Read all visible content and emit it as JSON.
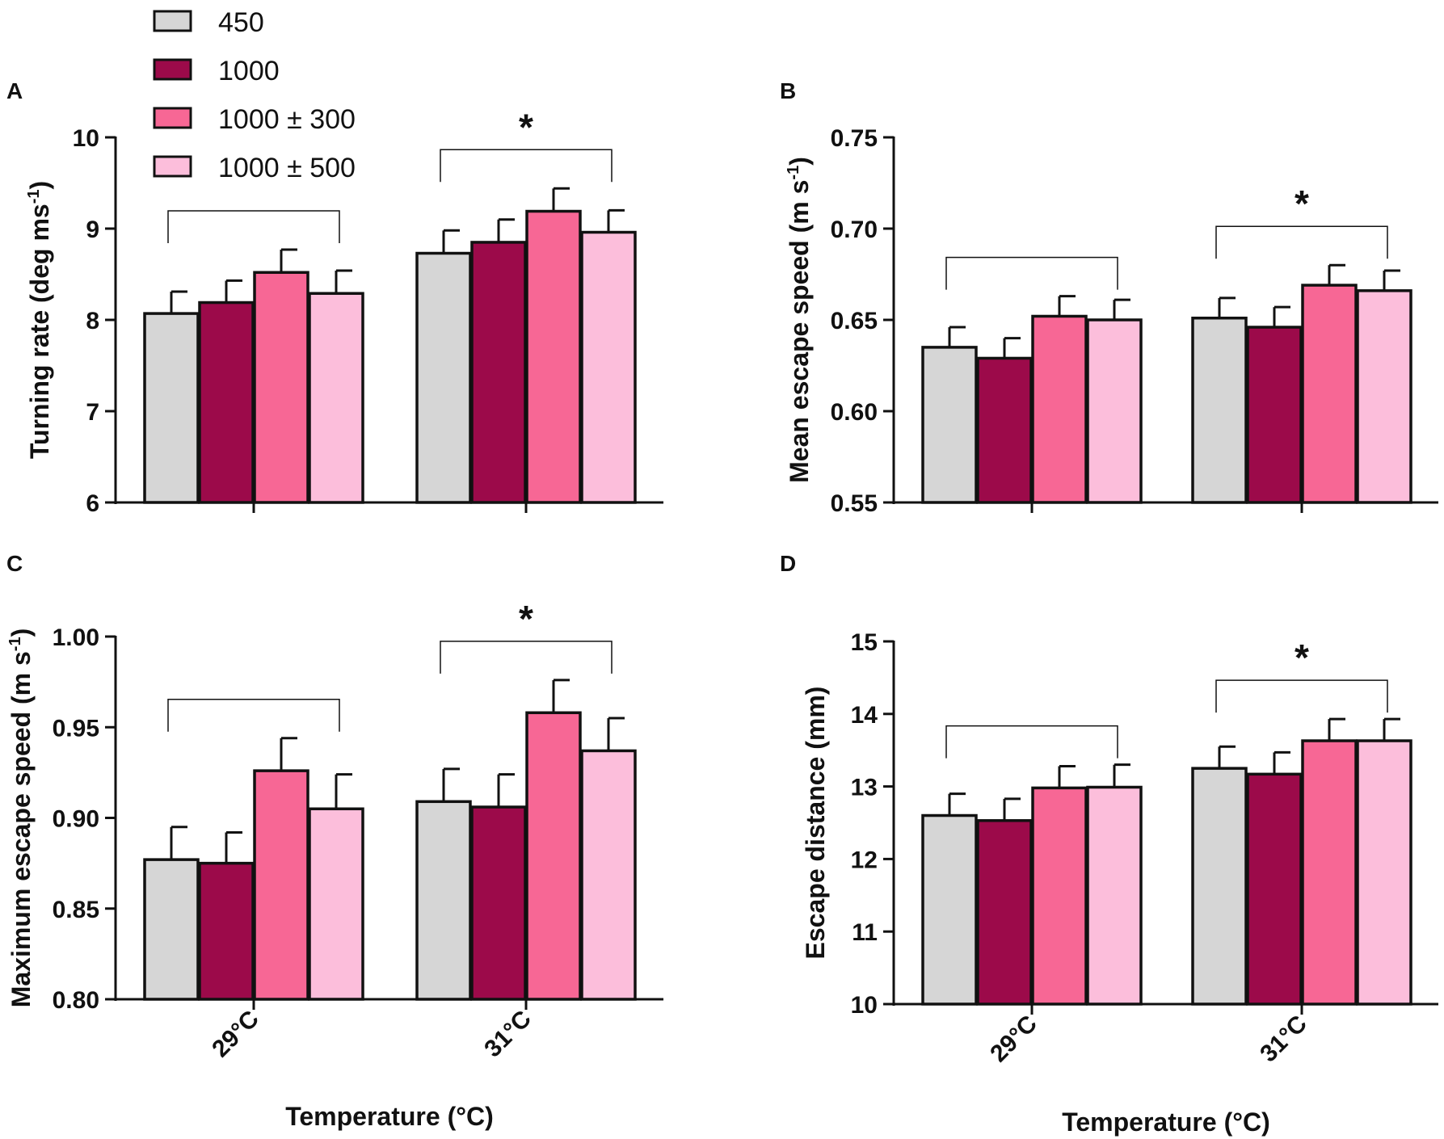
{
  "legend": {
    "items": [
      {
        "label": "450",
        "color": "#d6d6d6"
      },
      {
        "label": "1000",
        "color": "#9c0a4a"
      },
      {
        "label": "1000 ± 300",
        "color": "#f76795"
      },
      {
        "label": "1000 ± 500",
        "color": "#fcbedb"
      }
    ]
  },
  "significance_marker": "*",
  "chart_data": [
    {
      "type": "bar",
      "panel": "A",
      "categories": [
        "29°C",
        "31°C"
      ],
      "series": [
        {
          "name": "450",
          "values": [
            8.07,
            8.73
          ],
          "errors": [
            0.24,
            0.25
          ]
        },
        {
          "name": "1000",
          "values": [
            8.19,
            8.85
          ],
          "errors": [
            0.24,
            0.25
          ]
        },
        {
          "name": "1000 ± 300",
          "values": [
            8.52,
            9.19
          ],
          "errors": [
            0.25,
            0.25
          ]
        },
        {
          "name": "1000 ± 500",
          "values": [
            8.29,
            8.96
          ],
          "errors": [
            0.25,
            0.24
          ]
        }
      ],
      "ylabel_main": "Turning rate (deg ms",
      "ylabel_sup": "-1",
      "ylabel_end": ")",
      "xlabel": "",
      "ylim": [
        6,
        10
      ],
      "yticks": [
        6,
        7,
        8,
        9,
        10
      ],
      "ytick_labels": [
        "6",
        "7",
        "8",
        "9",
        "10"
      ],
      "significant": [
        false,
        true
      ],
      "show_category_labels": false
    },
    {
      "type": "bar",
      "panel": "B",
      "categories": [
        "29°C",
        "31°C"
      ],
      "series": [
        {
          "name": "450",
          "values": [
            0.635,
            0.651
          ],
          "errors": [
            0.011,
            0.011
          ]
        },
        {
          "name": "1000",
          "values": [
            0.629,
            0.646
          ],
          "errors": [
            0.011,
            0.011
          ]
        },
        {
          "name": "1000 ± 300",
          "values": [
            0.652,
            0.669
          ],
          "errors": [
            0.011,
            0.011
          ]
        },
        {
          "name": "1000 ± 500",
          "values": [
            0.65,
            0.666
          ],
          "errors": [
            0.011,
            0.011
          ]
        }
      ],
      "ylabel_main": "Mean escape speed (m s",
      "ylabel_sup": "-1",
      "ylabel_end": ")",
      "xlabel": "",
      "ylim": [
        0.55,
        0.75
      ],
      "yticks": [
        0.55,
        0.6,
        0.65,
        0.7,
        0.75
      ],
      "ytick_labels": [
        "0.55",
        "0.60",
        "0.65",
        "0.70",
        "0.75"
      ],
      "significant": [
        false,
        true
      ],
      "show_category_labels": false
    },
    {
      "type": "bar",
      "panel": "C",
      "categories": [
        "29°C",
        "31°C"
      ],
      "series": [
        {
          "name": "450",
          "values": [
            0.877,
            0.909
          ],
          "errors": [
            0.018,
            0.018
          ]
        },
        {
          "name": "1000",
          "values": [
            0.875,
            0.906
          ],
          "errors": [
            0.017,
            0.018
          ]
        },
        {
          "name": "1000 ± 300",
          "values": [
            0.926,
            0.958
          ],
          "errors": [
            0.018,
            0.018
          ]
        },
        {
          "name": "1000 ± 500",
          "values": [
            0.905,
            0.937
          ],
          "errors": [
            0.019,
            0.018
          ]
        }
      ],
      "ylabel_main": "Maximum escape speed (m s",
      "ylabel_sup": "-1",
      "ylabel_end": ")",
      "xlabel": "Temperature (°C)",
      "ylim": [
        0.8,
        1.0
      ],
      "yticks": [
        0.8,
        0.85,
        0.9,
        0.95,
        1.0
      ],
      "ytick_labels": [
        "0.80",
        "0.85",
        "0.90",
        "0.95",
        "1.00"
      ],
      "significant": [
        false,
        true
      ],
      "show_category_labels": true
    },
    {
      "type": "bar",
      "panel": "D",
      "categories": [
        "29°C",
        "31°C"
      ],
      "series": [
        {
          "name": "450",
          "values": [
            12.6,
            13.25
          ],
          "errors": [
            0.3,
            0.3
          ]
        },
        {
          "name": "1000",
          "values": [
            12.53,
            13.17
          ],
          "errors": [
            0.3,
            0.3
          ]
        },
        {
          "name": "1000 ± 300",
          "values": [
            12.98,
            13.63
          ],
          "errors": [
            0.3,
            0.3
          ]
        },
        {
          "name": "1000 ± 500",
          "values": [
            12.99,
            13.63
          ],
          "errors": [
            0.31,
            0.3
          ]
        }
      ],
      "ylabel_main": "Escape distance (mm)",
      "ylabel_sup": "",
      "ylabel_end": "",
      "xlabel": "Temperature (°C)",
      "ylim": [
        10,
        15
      ],
      "yticks": [
        10,
        11,
        12,
        13,
        14,
        15
      ],
      "ytick_labels": [
        "10",
        "11",
        "12",
        "13",
        "14",
        "15"
      ],
      "significant": [
        false,
        true
      ],
      "show_category_labels": true
    }
  ]
}
